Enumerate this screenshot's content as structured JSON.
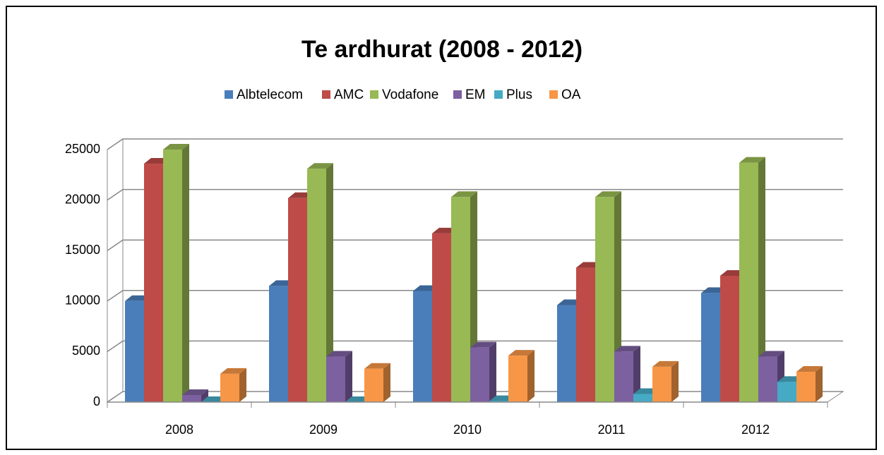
{
  "chart_data": {
    "type": "bar3d",
    "title": "Te ardhurat  (2008 - 2012)",
    "categories": [
      "2008",
      "2009",
      "2010",
      "2011",
      "2012"
    ],
    "series": [
      {
        "name": "Albtelecom",
        "color": "#4a7ebb",
        "values": [
          10000,
          11500,
          11000,
          9600,
          10800
        ]
      },
      {
        "name": "AMC",
        "color": "#be4b48",
        "values": [
          23600,
          20200,
          16700,
          13300,
          12500
        ]
      },
      {
        "name": "Vodafone",
        "color": "#98b954",
        "values": [
          25000,
          23100,
          20300,
          20300,
          23700
        ]
      },
      {
        "name": "EM",
        "color": "#7d60a0",
        "values": [
          700,
          4500,
          5400,
          5000,
          4500
        ]
      },
      {
        "name": "Plus",
        "color": "#46aac5",
        "values": [
          0,
          0,
          100,
          800,
          2000
        ]
      },
      {
        "name": "OA",
        "color": "#f79646",
        "values": [
          2800,
          3300,
          4600,
          3500,
          3000
        ]
      }
    ],
    "ylim": [
      0,
      25000
    ],
    "yticks": [
      0,
      5000,
      10000,
      15000,
      20000,
      25000
    ],
    "grid": true,
    "legend": "top"
  }
}
